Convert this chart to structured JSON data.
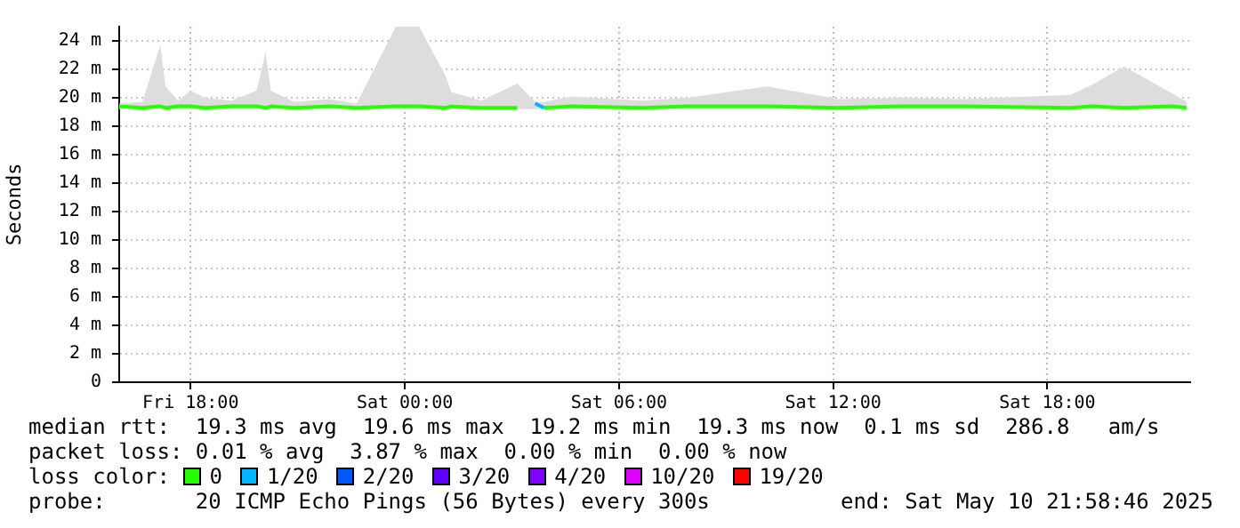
{
  "chart_data": {
    "type": "line",
    "ylabel": "Seconds",
    "legend_title": "loss color:",
    "legend": "bottom",
    "grid": true,
    "line_style": "solid",
    "marker": "none",
    "x": [
      "2025-05-09T16:00",
      "2025-05-09T16:39",
      "2025-05-09T17:09",
      "2025-05-09T17:18",
      "2025-05-09T17:39",
      "2025-05-09T18:00",
      "2025-05-09T18:24",
      "2025-05-09T19:09",
      "2025-05-09T19:51",
      "2025-05-09T20:06",
      "2025-05-09T20:15",
      "2025-05-09T20:54",
      "2025-05-09T21:54",
      "2025-05-09T22:39",
      "2025-05-09T23:45",
      "2025-05-10T00:24",
      "2025-05-10T01:09",
      "2025-05-10T01:18",
      "2025-05-10T02:09",
      "2025-05-10T03:09",
      "2025-05-10T03:39",
      "2025-05-10T03:54",
      "2025-05-10T04:39",
      "2025-05-10T06:39",
      "2025-05-10T07:54",
      "2025-05-10T10:09",
      "2025-05-10T12:09",
      "2025-05-10T13:54",
      "2025-05-10T15:39",
      "2025-05-10T18:39",
      "2025-05-10T19:15",
      "2025-05-10T20:09",
      "2025-05-10T21:30",
      "2025-05-10T21:54"
    ],
    "xlim": [
      "2025-05-09T16:00",
      "2025-05-10T22:00"
    ],
    "xticks": [
      {
        "value": "2025-05-09T18:00",
        "label": "Fri 18:00"
      },
      {
        "value": "2025-05-10T00:00",
        "label": "Sat 00:00"
      },
      {
        "value": "2025-05-10T06:00",
        "label": "Sat 06:00"
      },
      {
        "value": "2025-05-10T12:00",
        "label": "Sat 12:00"
      },
      {
        "value": "2025-05-10T18:00",
        "label": "Sat 18:00"
      }
    ],
    "ylim": [
      0,
      25
    ],
    "yticks": [
      0,
      {
        "value": 2,
        "label": "2 m"
      },
      {
        "value": 4,
        "label": "4 m"
      },
      {
        "value": 6,
        "label": "6 m"
      },
      {
        "value": 8,
        "label": "8 m"
      },
      {
        "value": 10,
        "label": "10 m"
      },
      {
        "value": 12,
        "label": "12 m"
      },
      {
        "value": 14,
        "label": "14 m"
      },
      {
        "value": 16,
        "label": "16 m"
      },
      {
        "value": 18,
        "label": "18 m"
      },
      {
        "value": 20,
        "label": "20 m"
      },
      {
        "value": 22,
        "label": "22 m"
      },
      {
        "value": 24,
        "label": "24 m"
      }
    ],
    "series": [
      {
        "name": "0",
        "color": "#26ff00",
        "values": [
          19.4,
          19.3,
          19.4,
          19.3,
          19.4,
          19.4,
          19.3,
          19.4,
          19.4,
          19.3,
          19.4,
          19.3,
          19.4,
          19.3,
          19.4,
          19.4,
          19.3,
          19.4,
          19.3,
          19.3,
          null,
          19.3,
          19.4,
          19.3,
          19.4,
          19.4,
          19.3,
          19.4,
          19.4,
          19.3,
          19.4,
          19.3,
          19.4,
          19.3
        ],
        "lower": [
          19.2,
          19.2,
          19.2,
          19.2,
          19.2,
          19.2,
          19.1,
          19.2,
          19.2,
          19.2,
          19.2,
          19.2,
          19.2,
          19.2,
          19.2,
          19.2,
          19.2,
          19.2,
          19.2,
          19.2,
          19.2,
          19.2,
          19.2,
          19.2,
          19.2,
          19.2,
          19.2,
          19.2,
          19.2,
          19.2,
          19.2,
          19.2,
          19.2,
          19.2
        ],
        "upper": [
          19.6,
          19.7,
          23.7,
          20.8,
          19.8,
          20.5,
          20.0,
          19.8,
          20.5,
          23.2,
          20.5,
          19.7,
          19.9,
          19.6,
          25,
          25,
          21.5,
          20.4,
          19.8,
          21.0,
          19.7,
          19.7,
          20.1,
          19.8,
          20.0,
          20.8,
          19.9,
          20.0,
          19.9,
          20.2,
          20.9,
          22.2,
          20.3,
          19.7
        ]
      },
      {
        "name": "1/20",
        "color": "#00b8ff",
        "values": [
          null,
          null,
          null,
          null,
          null,
          null,
          null,
          null,
          null,
          null,
          null,
          null,
          null,
          null,
          null,
          null,
          null,
          null,
          null,
          null,
          19.6,
          19.3,
          null,
          null,
          null,
          null,
          null,
          null,
          null,
          null,
          null,
          null,
          null,
          null
        ]
      },
      {
        "name": "2/20",
        "color": "#0059ff",
        "values": [
          null,
          null,
          null,
          null,
          null,
          null,
          null,
          null,
          null,
          null,
          null,
          null,
          null,
          null,
          null,
          null,
          null,
          null,
          null,
          null,
          null,
          null,
          null,
          null,
          null,
          null,
          null,
          null,
          null,
          null,
          null,
          null,
          null,
          null
        ]
      },
      {
        "name": "3/20",
        "color": "#5e00ff",
        "values": [
          null,
          null,
          null,
          null,
          null,
          null,
          null,
          null,
          null,
          null,
          null,
          null,
          null,
          null,
          null,
          null,
          null,
          null,
          null,
          null,
          null,
          null,
          null,
          null,
          null,
          null,
          null,
          null,
          null,
          null,
          null,
          null,
          null,
          null
        ]
      },
      {
        "name": "4/20",
        "color": "#7e00ff",
        "values": [
          null,
          null,
          null,
          null,
          null,
          null,
          null,
          null,
          null,
          null,
          null,
          null,
          null,
          null,
          null,
          null,
          null,
          null,
          null,
          null,
          null,
          null,
          null,
          null,
          null,
          null,
          null,
          null,
          null,
          null,
          null,
          null,
          null,
          null
        ]
      },
      {
        "name": "10/20",
        "color": "#dd00ff",
        "values": [
          null,
          null,
          null,
          null,
          null,
          null,
          null,
          null,
          null,
          null,
          null,
          null,
          null,
          null,
          null,
          null,
          null,
          null,
          null,
          null,
          null,
          null,
          null,
          null,
          null,
          null,
          null,
          null,
          null,
          null,
          null,
          null,
          null,
          null
        ]
      },
      {
        "name": "19/20",
        "color": "#ff0000",
        "values": [
          null,
          null,
          null,
          null,
          null,
          null,
          null,
          null,
          null,
          null,
          null,
          null,
          null,
          null,
          null,
          null,
          null,
          null,
          null,
          null,
          null,
          null,
          null,
          null,
          null,
          null,
          null,
          null,
          null,
          null,
          null,
          null,
          null,
          null
        ]
      }
    ],
    "annotations": [
      "median rtt:  19.3 ms avg  19.6 ms max  19.2 ms min  19.3 ms now  0.1 ms sd  286.8   am/s",
      "packet loss: 0.01 % avg  3.87 % max  0.00 % min  0.00 % now",
      "probe:       20 ICMP Echo Pings (56 Bytes) every 300s",
      "end: Sat May 10 21:58:46 2025"
    ]
  }
}
